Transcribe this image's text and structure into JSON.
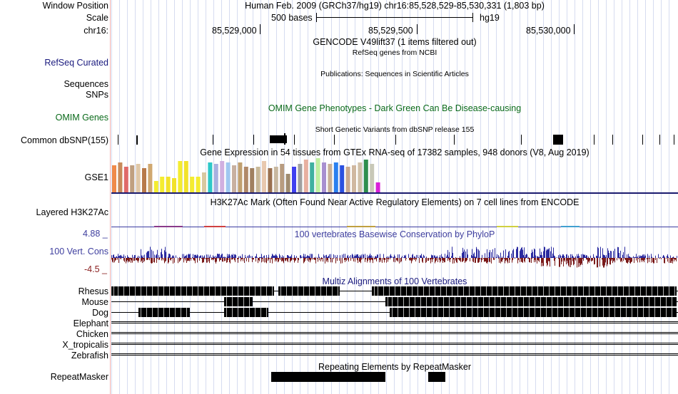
{
  "header": {
    "window_position_label": "Window Position",
    "window_position_value": "Human Feb. 2009 (GRCh37/hg19)   chr16:85,528,529-85,530,331 (1,803 bp)",
    "scale_label": "Scale",
    "scale_bar_text": "500 bases",
    "scale_assembly": "hg19",
    "chrom_label": "chr16:",
    "ruler_ticks": [
      "85,529,000",
      "85,529,500",
      "85,530,000"
    ]
  },
  "tracks": {
    "gencode_title": "GENCODE V49lift37 (1 items filtered out)",
    "refseq_label": "RefSeq Curated",
    "refseq_title": "RefSeq genes from NCBI",
    "publications_title": "Publications: Sequences in Scientific Articles",
    "sequences_label": "Sequences",
    "snps_label": "SNPs",
    "omim_label": "OMIM Genes",
    "omim_title": "OMIM Gene Phenotypes - Dark Green Can Be Disease-causing",
    "dbsnp_label": "Common dbSNP(155)",
    "dbsnp_title": "Short Genetic Variants from dbSNP release 155",
    "gtex_title": "Gene Expression in 54 tissues from GTEx RNA-seq of 17382 samples, 948 donors (V8, Aug 2019)",
    "gtex_label": "GSE1",
    "h3k27ac_label": "Layered H3K27Ac",
    "h3k27ac_title": "H3K27Ac Mark (Often Found Near Active Regulatory Elements) on 7 cell lines from ENCODE",
    "phylop_max": "4.88 _",
    "phylop_label": "100 Vert. Cons",
    "phylop_min": "-4.5 _",
    "phylop_title": "100 vertebrates Basewise Conservation by PhyloP",
    "multiz_title": "Multiz Alignments of 100 Vertebrates",
    "species": [
      {
        "name": "Rhesus",
        "color": "#1a1a7e"
      },
      {
        "name": "Mouse",
        "color": "#0a6a1a"
      },
      {
        "name": "Dog",
        "color": "#1a1a7e"
      },
      {
        "name": "Elephant",
        "color": "#0a6a1a"
      },
      {
        "name": "Chicken",
        "color": "#0a6a1a"
      },
      {
        "name": "X_tropicalis",
        "color": "#1a1a7e"
      },
      {
        "name": "Zebrafish",
        "color": "#0a6a1a"
      }
    ],
    "repeatmasker_label": "RepeatMasker",
    "repeatmasker_title": "Repeating Elements by RepeatMasker"
  },
  "colors": {
    "grid_line": "#d6dcf0",
    "dbsnp_mark": "#000000",
    "gtex_baseline": "#1a1a6e",
    "phylop_positive": "#2a2aa0",
    "phylop_negative": "#7a1a1a",
    "alignment_block": "#000000"
  },
  "gtex_colors": [
    "#f08a4a",
    "#c88a5a",
    "#e06a6a",
    "#c0a080",
    "#e0c8a8",
    "#b87a4a",
    "#d0a870",
    "#f4ec30",
    "#f4ec30",
    "#f2e22a",
    "#f2e22a",
    "#f4ec30",
    "#f2e22a",
    "#f4ec30",
    "#f4ec30",
    "#d8c8a0",
    "#2ec8c8",
    "#a8b0e0",
    "#d0b0e0",
    "#a0c8f0",
    "#c8b0a0",
    "#c0a070",
    "#b08868",
    "#a08060",
    "#c8b898",
    "#e8c8b0",
    "#9a7050",
    "#c8b8a0",
    "#b89c80",
    "#a08c70",
    "#4040f0",
    "#a0a0a0",
    "#e8b0a0",
    "#40b0a0",
    "#c0f0a0",
    "#a890d0",
    "#c8b098",
    "#2a80f0",
    "#2a50e0",
    "#c8a890",
    "#d0b8a0",
    "#d0c0a8",
    "#2e8e4e",
    "#c8c8b8",
    "#d820d8"
  ],
  "gtex_heights": [
    38,
    42,
    36,
    38,
    40,
    34,
    40,
    16,
    22,
    22,
    20,
    44,
    44,
    22,
    22,
    28,
    42,
    40,
    44,
    42,
    38,
    42,
    36,
    34,
    36,
    44,
    34,
    36,
    40,
    26,
    36,
    40,
    46,
    42,
    48,
    42,
    40,
    42,
    38,
    36,
    38,
    42,
    46,
    40,
    14
  ]
}
